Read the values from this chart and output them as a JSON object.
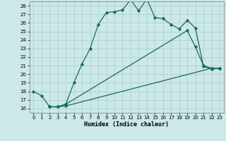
{
  "xlabel": "Humidex (Indice chaleur)",
  "bg_color": "#cce8e8",
  "grid_color": "#aacccc",
  "line_color": "#1a6a5a",
  "xlim": [
    -0.5,
    23.5
  ],
  "ylim": [
    15.5,
    28.5
  ],
  "yticks": [
    16,
    17,
    18,
    19,
    20,
    21,
    22,
    23,
    24,
    25,
    26,
    27,
    28
  ],
  "xticks": [
    0,
    1,
    2,
    3,
    4,
    5,
    6,
    7,
    8,
    9,
    10,
    11,
    12,
    13,
    14,
    15,
    16,
    17,
    18,
    19,
    20,
    21,
    22,
    23
  ],
  "series": [
    {
      "x": [
        0,
        1,
        2,
        3,
        4,
        5,
        6,
        7,
        8,
        9,
        10,
        11,
        12,
        13,
        14,
        15,
        16,
        17,
        18,
        19,
        20,
        21,
        22,
        23
      ],
      "y": [
        18,
        17.5,
        16.2,
        16.2,
        16.5,
        19.0,
        21.2,
        23.0,
        25.8,
        27.2,
        27.3,
        27.5,
        28.7,
        27.4,
        28.8,
        26.6,
        26.5,
        25.8,
        25.3,
        26.3,
        25.4,
        20.9,
        20.6,
        20.7
      ]
    },
    {
      "x": [
        2,
        3,
        4,
        22,
        23
      ],
      "y": [
        16.2,
        16.2,
        16.3,
        20.7,
        20.7
      ]
    },
    {
      "x": [
        2,
        3,
        4,
        19,
        20,
        21,
        22,
        23
      ],
      "y": [
        16.2,
        16.2,
        16.5,
        25.1,
        23.2,
        21.0,
        20.7,
        20.7
      ]
    }
  ]
}
